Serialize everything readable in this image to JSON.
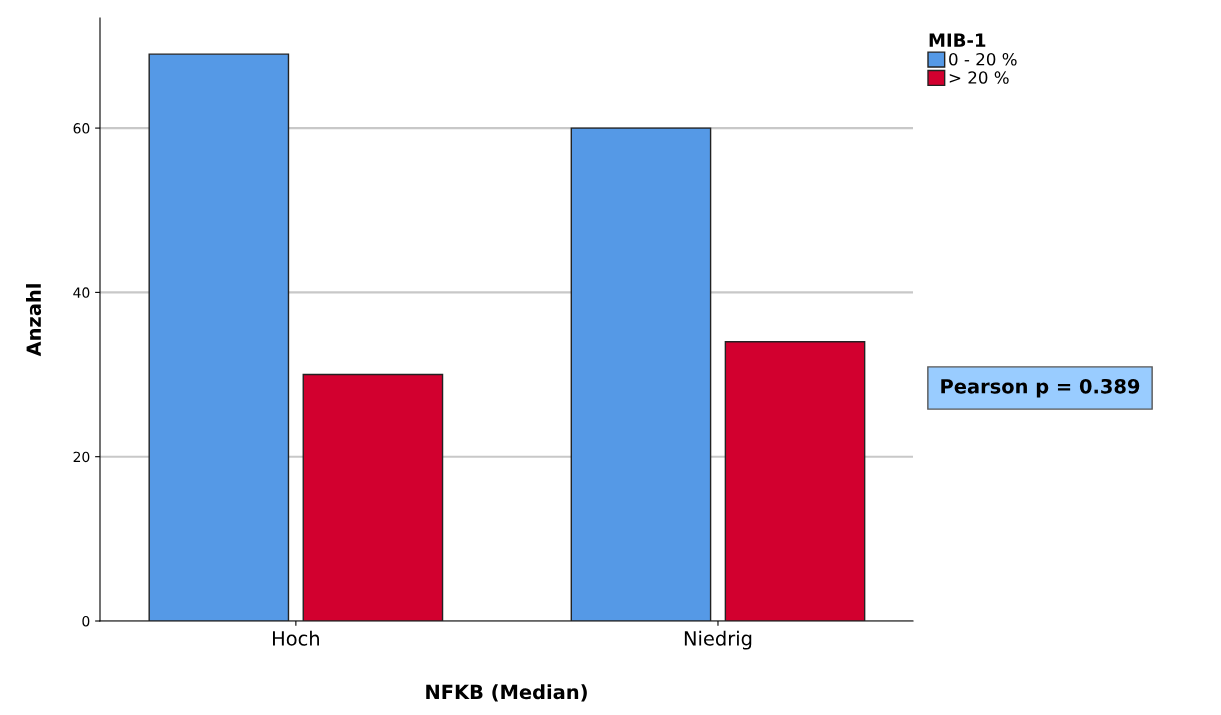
{
  "chart_data": {
    "type": "bar",
    "xlabel": "NFKB (Median)",
    "ylabel": "Anzahl",
    "legend_title": "MIB-1",
    "categories": [
      "Hoch",
      "Niedrig"
    ],
    "series": [
      {
        "name": "0 - 20 %",
        "color": "#5599e6",
        "values": [
          69,
          60
        ]
      },
      {
        "name": "> 20 %",
        "color": "#d2002f",
        "values": [
          30,
          34
        ]
      }
    ],
    "ylim": [
      0,
      73.4
    ],
    "yticks": [
      0,
      20,
      40,
      60
    ],
    "grid": "y",
    "legend": "top right",
    "annotations": [
      "Pearson p = 0.389"
    ]
  }
}
